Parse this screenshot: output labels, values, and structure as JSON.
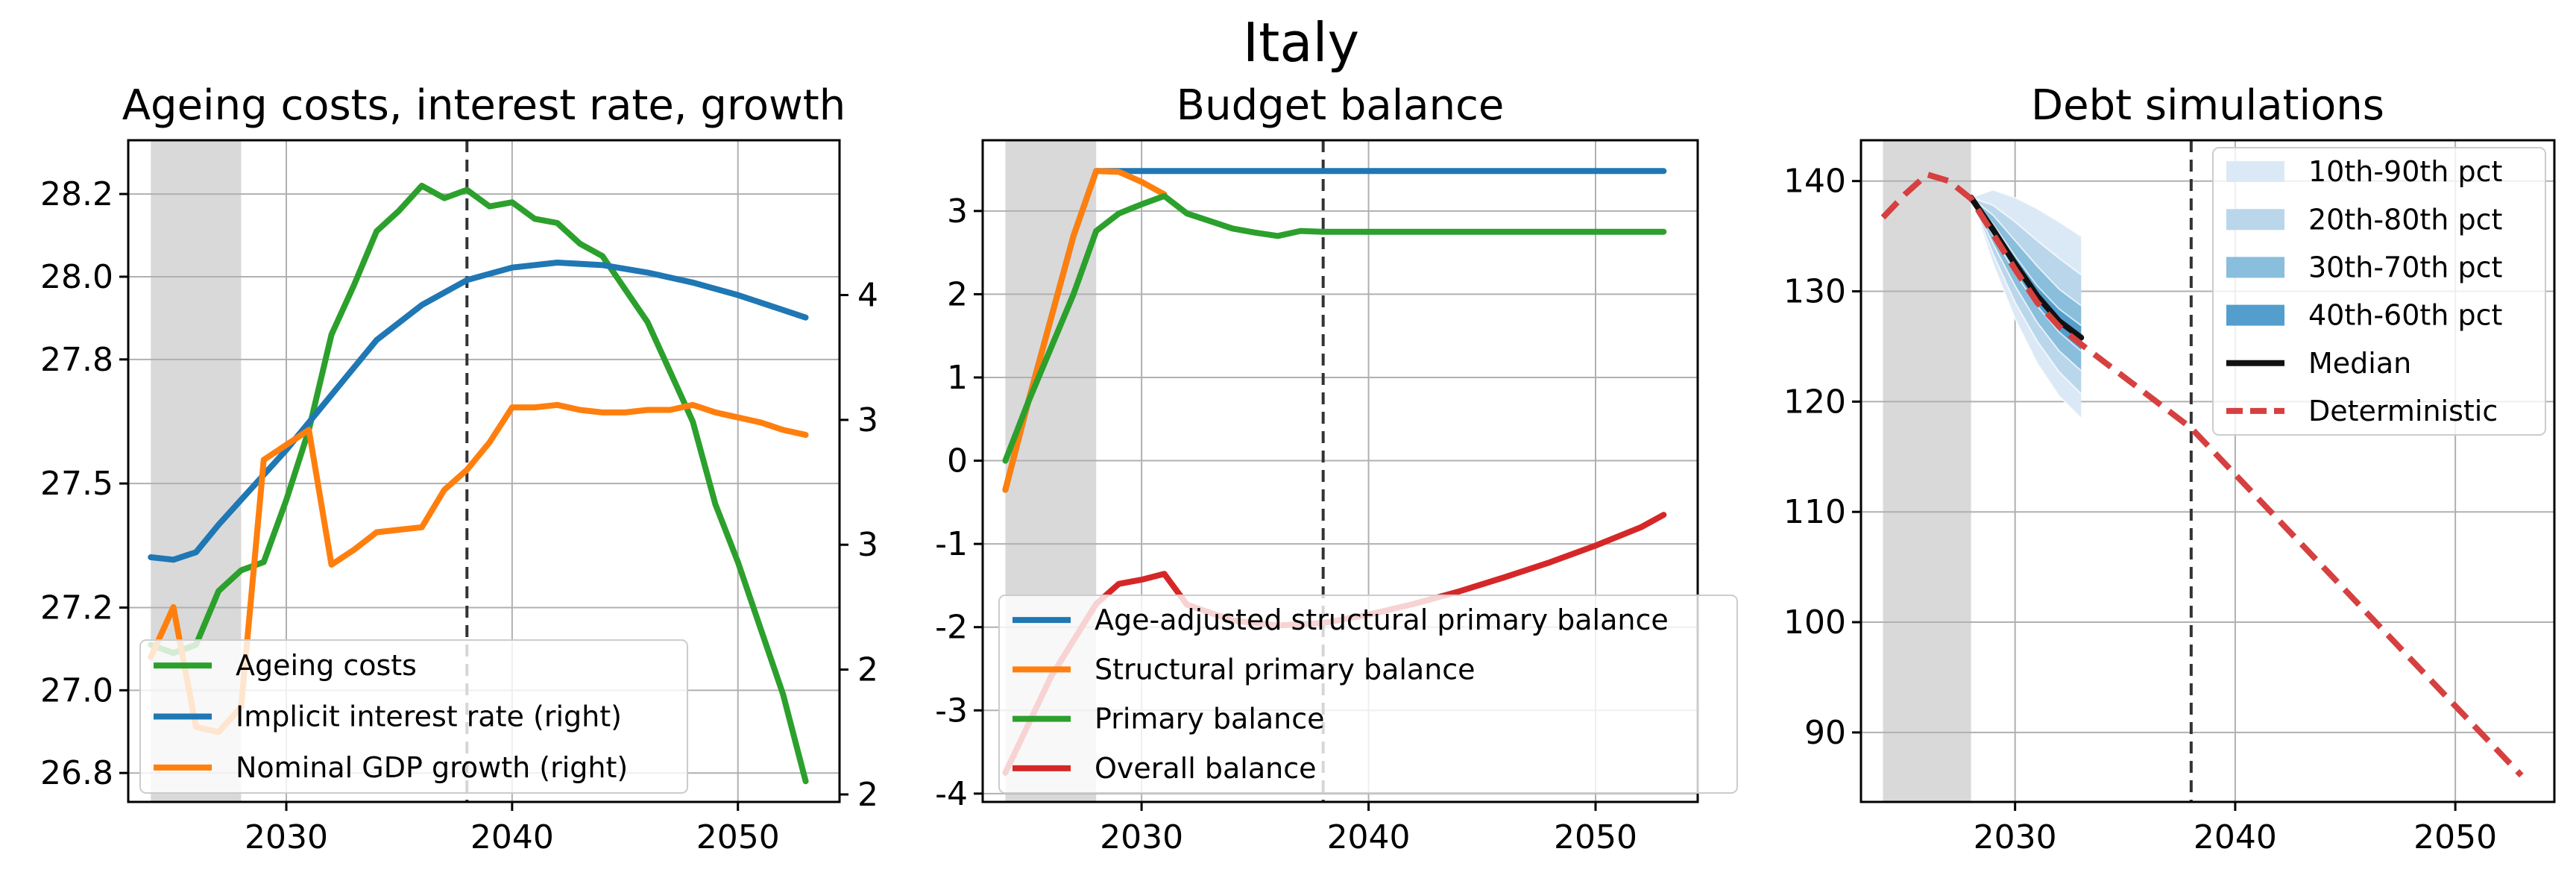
{
  "suptitle": "Italy",
  "colors": {
    "green": "#2ca02c",
    "blue": "#1f77b4",
    "orange": "#ff7f0e",
    "red": "#d62728",
    "shade": "#d9d9d9",
    "fan": [
      "#dbe9f6",
      "#bad6eb",
      "#89bedc",
      "#539ecd"
    ],
    "median": "#111111",
    "deterministic": "#d64040"
  },
  "chart_data": [
    {
      "type": "line",
      "title": "Ageing costs, interest rate, growth",
      "shaded_x": [
        2024,
        2028
      ],
      "vline_x": 2038,
      "xlim": [
        2023,
        2054.5
      ],
      "xticks": [
        "2030",
        "2040",
        "2050"
      ],
      "xtick_values": [
        2030,
        2040,
        2050
      ],
      "ylim": [
        26.73,
        28.33
      ],
      "yticks": [
        "26.8",
        "27.0",
        "27.2",
        "27.5",
        "27.8",
        "28.0",
        "28.2"
      ],
      "ytick_values": [
        26.8,
        27.0,
        27.2,
        27.5,
        27.8,
        28.0,
        28.2
      ],
      "y2lim": [
        1.97,
        4.62
      ],
      "y2ticks": [
        "2",
        "2",
        "3",
        "3",
        "4"
      ],
      "y2tick_values": [
        2.0,
        2.5,
        3.0,
        3.5,
        4.0
      ],
      "legend_position": "lower-left",
      "series": [
        {
          "name": "Ageing costs",
          "color": "green",
          "axis": "left",
          "x": [
            2024,
            2025,
            2026,
            2027,
            2028,
            2029,
            2030,
            2031,
            2032,
            2033,
            2034,
            2035,
            2036,
            2037,
            2038,
            2039,
            2040,
            2041,
            2042,
            2043,
            2044,
            2045,
            2046,
            2047,
            2048,
            2049,
            2050,
            2051,
            2052,
            2053
          ],
          "y": [
            27.11,
            27.09,
            27.11,
            27.24,
            27.29,
            27.31,
            27.46,
            27.63,
            27.86,
            27.98,
            28.11,
            28.16,
            28.22,
            28.19,
            28.21,
            28.17,
            28.18,
            28.14,
            28.13,
            28.08,
            28.05,
            27.97,
            27.89,
            27.77,
            27.65,
            27.45,
            27.31,
            27.15,
            26.99,
            26.78
          ]
        },
        {
          "name": "Implicit interest rate (right)",
          "color": "blue",
          "axis": "right",
          "x": [
            2024,
            2025,
            2026,
            2027,
            2028,
            2030,
            2032,
            2034,
            2036,
            2038,
            2040,
            2042,
            2044,
            2046,
            2048,
            2050,
            2052,
            2053
          ],
          "y": [
            2.95,
            2.94,
            2.97,
            3.08,
            3.18,
            3.38,
            3.6,
            3.82,
            3.96,
            4.06,
            4.11,
            4.13,
            4.12,
            4.09,
            4.05,
            4.0,
            3.94,
            3.91
          ]
        },
        {
          "name": "Nominal GDP growth (right)",
          "color": "orange",
          "axis": "right",
          "x": [
            2024,
            2025,
            2026,
            2027,
            2028,
            2029,
            2030,
            2031,
            2032,
            2033,
            2034,
            2035,
            2036,
            2037,
            2038,
            2039,
            2040,
            2041,
            2042,
            2043,
            2044,
            2045,
            2046,
            2047,
            2048,
            2049,
            2050,
            2051,
            2052,
            2053
          ],
          "y": [
            2.55,
            2.75,
            2.27,
            2.25,
            2.35,
            3.34,
            3.4,
            3.46,
            2.92,
            2.98,
            3.05,
            3.06,
            3.07,
            3.22,
            3.3,
            3.41,
            3.55,
            3.55,
            3.56,
            3.54,
            3.53,
            3.53,
            3.54,
            3.54,
            3.56,
            3.53,
            3.51,
            3.49,
            3.46,
            3.44
          ]
        }
      ]
    },
    {
      "type": "line",
      "title": "Budget balance",
      "shaded_x": [
        2024,
        2028
      ],
      "vline_x": 2038,
      "xlim": [
        2023,
        2054.5
      ],
      "xticks": [
        "2030",
        "2040",
        "2050"
      ],
      "xtick_values": [
        2030,
        2040,
        2050
      ],
      "ylim": [
        -4.1,
        3.85
      ],
      "yticks": [
        "-4",
        "-3",
        "-2",
        "-1",
        "0",
        "1",
        "2",
        "3"
      ],
      "ytick_values": [
        -4,
        -3,
        -2,
        -1,
        0,
        1,
        2,
        3
      ],
      "legend_position": "lower-left",
      "series": [
        {
          "name": "Age-adjusted structural primary balance",
          "color": "blue",
          "x": [
            2024,
            2025,
            2026,
            2027,
            2028,
            2030,
            2035,
            2040,
            2045,
            2050,
            2053
          ],
          "y": [
            -0.35,
            0.7,
            1.7,
            2.7,
            3.48,
            3.48,
            3.48,
            3.48,
            3.48,
            3.48,
            3.48
          ]
        },
        {
          "name": "Structural primary balance",
          "color": "orange",
          "x": [
            2024,
            2025,
            2026,
            2027,
            2028,
            2029,
            2030,
            2031
          ],
          "y": [
            -0.35,
            0.7,
            1.7,
            2.7,
            3.48,
            3.47,
            3.35,
            3.2
          ]
        },
        {
          "name": "Primary balance",
          "color": "green",
          "x": [
            2024,
            2025,
            2026,
            2027,
            2028,
            2029,
            2030,
            2031,
            2032,
            2033,
            2034,
            2035,
            2036,
            2037,
            2038,
            2040,
            2045,
            2050,
            2053
          ],
          "y": [
            0.0,
            0.7,
            1.35,
            2.0,
            2.76,
            2.97,
            3.08,
            3.18,
            2.97,
            2.88,
            2.79,
            2.74,
            2.7,
            2.76,
            2.75,
            2.75,
            2.75,
            2.75,
            2.75
          ]
        },
        {
          "name": "Overall balance",
          "color": "red",
          "x": [
            2024,
            2026,
            2028,
            2029,
            2030,
            2031,
            2032,
            2034,
            2036,
            2038,
            2040,
            2042,
            2044,
            2046,
            2048,
            2050,
            2052,
            2053
          ],
          "y": [
            -3.75,
            -2.6,
            -1.72,
            -1.48,
            -1.43,
            -1.36,
            -1.73,
            -1.92,
            -1.98,
            -1.95,
            -1.85,
            -1.72,
            -1.57,
            -1.4,
            -1.22,
            -1.02,
            -0.8,
            -0.65
          ]
        }
      ]
    },
    {
      "type": "line",
      "title": "Debt simulations",
      "shaded_x": [
        2024,
        2028
      ],
      "vline_x": 2038,
      "xlim": [
        2023,
        2054.5
      ],
      "xticks": [
        "2030",
        "2040",
        "2050"
      ],
      "xtick_values": [
        2030,
        2040,
        2050
      ],
      "ylim": [
        83.7,
        143.7
      ],
      "yticks": [
        "90",
        "100",
        "110",
        "120",
        "130",
        "140"
      ],
      "ytick_values": [
        90,
        100,
        110,
        120,
        130,
        140
      ],
      "legend_position": "upper-right",
      "fan": {
        "x": [
          2028,
          2029,
          2030,
          2031,
          2032,
          2033
        ],
        "bands": [
          {
            "name": "10th-90th pct",
            "color_index": 0,
            "lower": [
              138.5,
              132.5,
              127.5,
              123.5,
              120.5,
              118.5
            ],
            "upper": [
              138.5,
              139.2,
              138.5,
              137.5,
              136.3,
              135.0
            ]
          },
          {
            "name": "20th-80th pct",
            "color_index": 1,
            "lower": [
              138.5,
              133.4,
              129.0,
              125.5,
              122.7,
              120.7
            ],
            "upper": [
              138.5,
              137.8,
              136.3,
              134.6,
              133.0,
              131.5
            ]
          },
          {
            "name": "30th-70th pct",
            "color_index": 2,
            "lower": [
              138.5,
              134.3,
              130.5,
              127.2,
              124.6,
              122.8
            ],
            "upper": [
              138.5,
              136.9,
              134.6,
              132.3,
              130.2,
              128.7
            ]
          },
          {
            "name": "40th-60th pct",
            "color_index": 3,
            "lower": [
              138.5,
              135.1,
              131.7,
              128.7,
              126.3,
              124.6
            ],
            "upper": [
              138.5,
              136.1,
              133.2,
              130.5,
              128.4,
              126.9
            ]
          }
        ]
      },
      "series": [
        {
          "name": "Median",
          "color": "median",
          "style": "solid",
          "x": [
            2028,
            2029,
            2030,
            2031,
            2032,
            2033
          ],
          "y": [
            138.5,
            135.6,
            132.5,
            129.6,
            127.3,
            125.8
          ]
        },
        {
          "name": "Deterministic",
          "color": "deterministic",
          "style": "dashed",
          "x": [
            2024,
            2025,
            2026,
            2027,
            2028,
            2029,
            2030,
            2031,
            2032,
            2033,
            2038,
            2053
          ],
          "y": [
            136.7,
            138.8,
            140.6,
            140.0,
            138.4,
            135.2,
            132.0,
            129.0,
            126.8,
            125.2,
            117.6,
            86.1
          ]
        }
      ]
    }
  ]
}
